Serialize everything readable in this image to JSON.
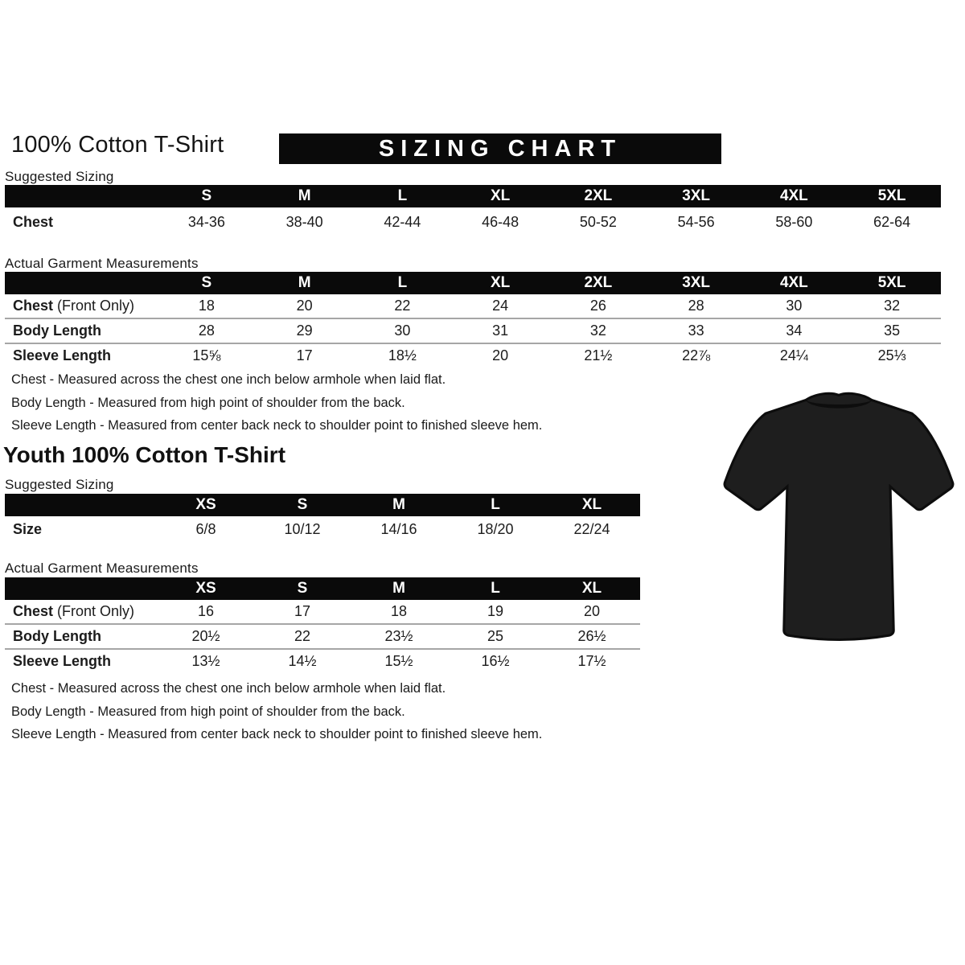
{
  "header": {
    "adult_title": "100% Cotton T-Shirt",
    "banner": "SIZING CHART",
    "youth_title": "Youth 100% Cotton T-Shirt"
  },
  "labels": {
    "suggested": "Suggested Sizing",
    "actual": "Actual Garment Measurements"
  },
  "notes": {
    "chest": "Chest - Measured across the chest one inch below armhole when laid flat.",
    "body": "Body Length - Measured from high point of shoulder from the back.",
    "sleeve": "Sleeve Length - Measured from center back neck to shoulder point to finished sleeve hem."
  },
  "adult": {
    "suggested": {
      "columns": [
        "S",
        "M",
        "L",
        "XL",
        "2XL",
        "3XL",
        "4XL",
        "5XL"
      ],
      "rows": [
        {
          "label": "Chest",
          "note": "",
          "values": [
            "34-36",
            "38-40",
            "42-44",
            "46-48",
            "50-52",
            "54-56",
            "58-60",
            "62-64"
          ]
        }
      ]
    },
    "actual": {
      "columns": [
        "S",
        "M",
        "L",
        "XL",
        "2XL",
        "3XL",
        "4XL",
        "5XL"
      ],
      "rows": [
        {
          "label": "Chest",
          "note": " (Front Only)",
          "values": [
            "18",
            "20",
            "22",
            "24",
            "26",
            "28",
            "30",
            "32"
          ]
        },
        {
          "label": "Body Length",
          "note": "",
          "values": [
            "28",
            "29",
            "30",
            "31",
            "32",
            "33",
            "34",
            "35"
          ]
        },
        {
          "label": "Sleeve Length",
          "note": "",
          "values": [
            "15⅝",
            "17",
            "18½",
            "20",
            "21½",
            "22⅞",
            "24¼",
            "25⅓"
          ]
        }
      ]
    }
  },
  "youth": {
    "suggested": {
      "columns": [
        "XS",
        "S",
        "M",
        "L",
        "XL"
      ],
      "rows": [
        {
          "label": "Size",
          "note": "",
          "values": [
            "6/8",
            "10/12",
            "14/16",
            "18/20",
            "22/24"
          ]
        }
      ]
    },
    "actual": {
      "columns": [
        "XS",
        "S",
        "M",
        "L",
        "XL"
      ],
      "rows": [
        {
          "label": "Chest",
          "note": " (Front Only)",
          "values": [
            "16",
            "17",
            "18",
            "19",
            "20"
          ]
        },
        {
          "label": "Body Length",
          "note": "",
          "values": [
            "20½",
            "22",
            "23½",
            "25",
            "26½"
          ]
        },
        {
          "label": "Sleeve Length",
          "note": "",
          "values": [
            "13½",
            "14½",
            "15½",
            "16½",
            "17½"
          ]
        }
      ]
    }
  },
  "tshirt": {
    "name": "black-tshirt-photo",
    "fill": "#1e1e1e",
    "edge": "#0d0d0d"
  }
}
